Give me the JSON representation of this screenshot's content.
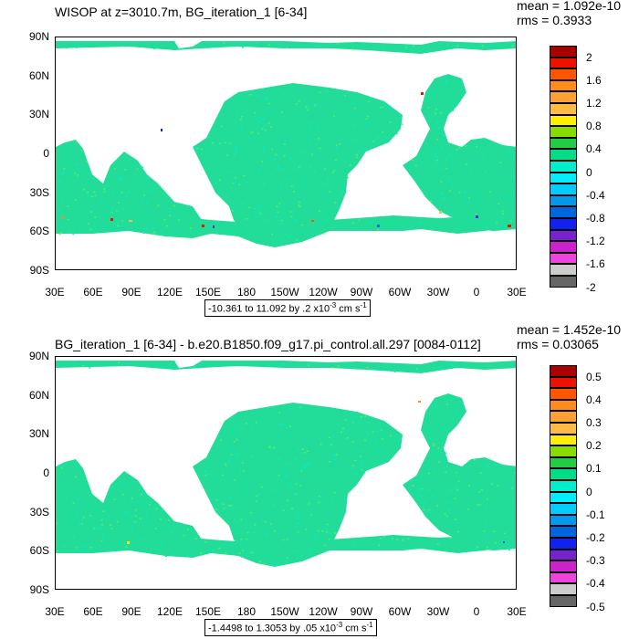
{
  "panels": [
    {
      "title": "WISOP at z=3010.7m, BG_iteration_1 [6-34]",
      "mean": "mean = 1.092e-10",
      "rms": "rms = 0.3933",
      "range_text": "-10.361 to 11.092 by .2 x10",
      "range_exp": "-3",
      "range_unit": " cm s",
      "range_unit_exp": "-1",
      "colorbar_labels": [
        "2",
        "1.6",
        "1.2",
        "0.8",
        "0.4",
        "0",
        "-0.4",
        "-0.8",
        "-1.2",
        "-1.6",
        "-2"
      ]
    },
    {
      "title": "BG_iteration_1 [6-34] - b.e20.B1850.f09_g17.pi_control.all.297 [0084-0112]",
      "mean": "mean = 1.452e-10",
      "rms": "rms = 0.03065",
      "range_text": "-1.4498 to 1.3053 by .05 x10",
      "range_exp": "-3",
      "range_unit": " cm s",
      "range_unit_exp": "-1",
      "colorbar_labels": [
        "0.5",
        "0.4",
        "0.3",
        "0.2",
        "0.1",
        "0",
        "-0.1",
        "-0.2",
        "-0.3",
        "-0.4",
        "-0.5"
      ]
    }
  ],
  "lat_labels": [
    "90N",
    "60N",
    "30N",
    "0",
    "30S",
    "60S",
    "90S"
  ],
  "lon_labels": [
    "30E",
    "60E",
    "90E",
    "120E",
    "150E",
    "180",
    "150W",
    "120W",
    "90W",
    "60W",
    "30W",
    "0",
    "30E"
  ],
  "colorbar_colors": [
    "#aa0000",
    "#ee1100",
    "#ff5500",
    "#ff8c1a",
    "#ffa033",
    "#ffbb44",
    "#ffee00",
    "#88dd00",
    "#22cc44",
    "#00dd88",
    "#00eecc",
    "#00eeff",
    "#00ccff",
    "#0099ee",
    "#0066dd",
    "#1122ee",
    "#7722cc",
    "#cc22cc",
    "#ee44dd",
    "#cccccc",
    "#666666"
  ],
  "field_color": "#22dd99",
  "speckle_color": "#55ee66"
}
